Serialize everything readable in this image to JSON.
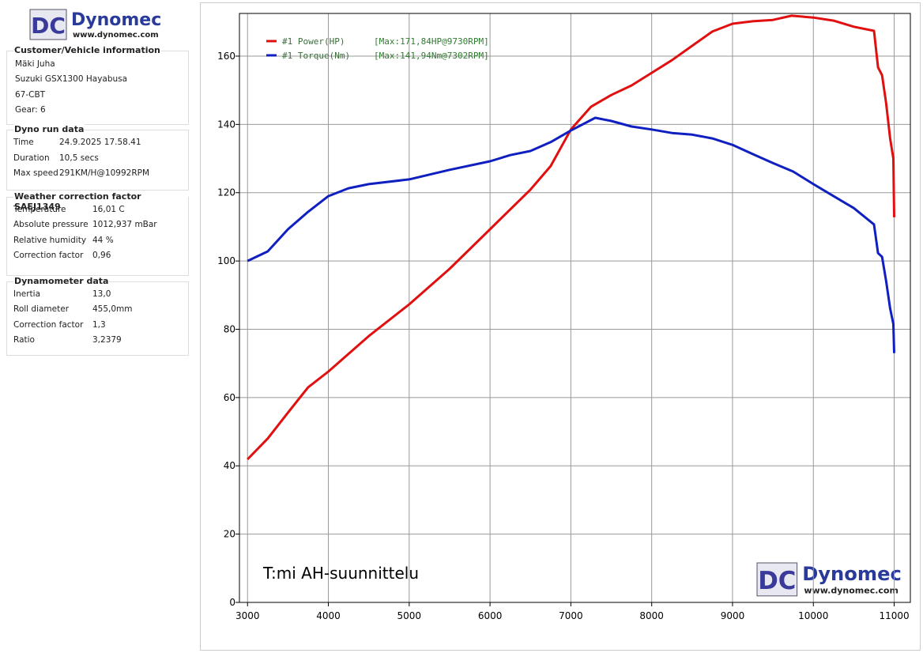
{
  "logo": {
    "mark": "DC",
    "name": "Dynomec",
    "url": "www.dynomec.com"
  },
  "info": {
    "sections": [
      {
        "title": "Customer/Vehicle information",
        "rows": [
          [
            "Mäki Juha"
          ],
          [
            "Suzuki GSX1300 Hayabusa"
          ],
          [
            "67-CBT"
          ],
          [
            "Gear: 6"
          ]
        ]
      },
      {
        "title": "Dyno run data",
        "rows": [
          [
            "Time",
            "24.9.2025 17.58.41"
          ],
          [
            "Duration",
            "10,5 secs"
          ],
          [
            "Max speed",
            "291KM/H@10992RPM"
          ]
        ]
      },
      {
        "title": "Weather correction factor SAEJ1349",
        "rows": [
          [
            "Temperature",
            "16,01 C"
          ],
          [
            "Absolute pressure",
            "1012,937 mBar"
          ],
          [
            "Relative humidity",
            "44 %"
          ],
          [
            "Correction factor",
            "0,96"
          ]
        ]
      },
      {
        "title": "Dynamometer data",
        "rows": [
          [
            "Inertia",
            "13,0"
          ],
          [
            "Roll diameter",
            "455,0mm"
          ],
          [
            "Correction factor",
            "1,3"
          ],
          [
            "Ratio",
            "3,2379"
          ]
        ]
      }
    ]
  },
  "chart_data": {
    "type": "line",
    "annotation": "T:mi AH-suunnittelu",
    "xlim": [
      2900,
      11200
    ],
    "ylim": [
      0,
      172.5
    ],
    "xticks": [
      3000,
      4000,
      5000,
      6000,
      7000,
      8000,
      9000,
      10000,
      11000
    ],
    "yticks": [
      0,
      20,
      40,
      60,
      80,
      100,
      120,
      140,
      160
    ],
    "grid": true,
    "series": [
      {
        "name": "#1 Power(HP)",
        "max_label": "[Max:171,84HP@9730RPM]",
        "color": "#e01010",
        "x": [
          3000,
          3250,
          3500,
          3750,
          4000,
          4500,
          5000,
          5500,
          6000,
          6500,
          6750,
          7000,
          7250,
          7500,
          7750,
          8000,
          8250,
          8500,
          8750,
          9000,
          9250,
          9500,
          9730,
          10000,
          10250,
          10500,
          10750,
          10800,
          10850,
          10900,
          10950,
          10990,
          11000
        ],
        "values": [
          41.9,
          48,
          55.6,
          63,
          67.6,
          78,
          87.3,
          97.7,
          109.3,
          120.9,
          127.8,
          138.5,
          145.2,
          148.6,
          151.4,
          155.1,
          158.8,
          163,
          167.2,
          169.5,
          170.2,
          170.6,
          171.84,
          171.3,
          170.4,
          168.6,
          167.4,
          156.7,
          154.4,
          146.3,
          135.9,
          130,
          112.8
        ]
      },
      {
        "name": "#1 Torque(Nm)",
        "max_label": "[Max:141,94Nm@7302RPM]",
        "color": "#1020c0",
        "x": [
          3000,
          3250,
          3500,
          3750,
          4000,
          4250,
          4500,
          5000,
          5500,
          6000,
          6250,
          6500,
          6750,
          7000,
          7302,
          7500,
          7750,
          8000,
          8250,
          8500,
          8750,
          9000,
          9250,
          9500,
          9750,
          10000,
          10250,
          10500,
          10750,
          10800,
          10850,
          10900,
          10950,
          10990,
          11000
        ],
        "values": [
          100,
          102.8,
          109.3,
          114.4,
          119,
          121.3,
          122.5,
          123.9,
          126.7,
          129.2,
          131,
          132.2,
          134.8,
          138.2,
          141.94,
          141,
          139.4,
          138.5,
          137.5,
          137,
          135.9,
          134,
          131.3,
          128.7,
          126.2,
          122.5,
          119,
          115.5,
          110.7,
          102.3,
          101.2,
          94.2,
          86.1,
          81.5,
          73
        ]
      }
    ]
  }
}
